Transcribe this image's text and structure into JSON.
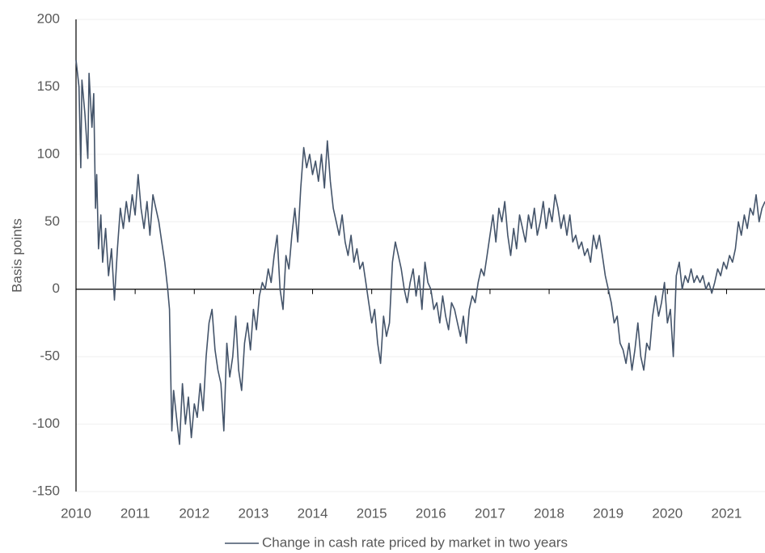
{
  "chart_data": {
    "type": "line",
    "y_label": "Basis points",
    "x": [
      2010.0,
      2010.05,
      2010.08,
      2010.1,
      2010.15,
      2010.2,
      2010.22,
      2010.27,
      2010.3,
      2010.33,
      2010.35,
      2010.38,
      2010.42,
      2010.45,
      2010.5,
      2010.55,
      2010.6,
      2010.65,
      2010.7,
      2010.75,
      2010.8,
      2010.85,
      2010.9,
      2010.95,
      2011.0,
      2011.05,
      2011.1,
      2011.15,
      2011.2,
      2011.25,
      2011.3,
      2011.35,
      2011.4,
      2011.45,
      2011.5,
      2011.55,
      2011.58,
      2011.6,
      2011.62,
      2011.65,
      2011.7,
      2011.75,
      2011.8,
      2011.85,
      2011.9,
      2011.95,
      2012.0,
      2012.05,
      2012.1,
      2012.15,
      2012.2,
      2012.25,
      2012.3,
      2012.35,
      2012.4,
      2012.45,
      2012.5,
      2012.55,
      2012.6,
      2012.65,
      2012.7,
      2012.75,
      2012.8,
      2012.85,
      2012.9,
      2012.95,
      2013.0,
      2013.05,
      2013.1,
      2013.15,
      2013.2,
      2013.25,
      2013.3,
      2013.35,
      2013.4,
      2013.45,
      2013.5,
      2013.55,
      2013.6,
      2013.65,
      2013.7,
      2013.75,
      2013.8,
      2013.85,
      2013.9,
      2013.95,
      2014.0,
      2014.05,
      2014.1,
      2014.15,
      2014.2,
      2014.25,
      2014.3,
      2014.35,
      2014.4,
      2014.45,
      2014.5,
      2014.55,
      2014.6,
      2014.65,
      2014.7,
      2014.75,
      2014.8,
      2014.85,
      2014.9,
      2014.95,
      2015.0,
      2015.05,
      2015.1,
      2015.15,
      2015.2,
      2015.25,
      2015.3,
      2015.35,
      2015.4,
      2015.45,
      2015.5,
      2015.55,
      2015.6,
      2015.65,
      2015.7,
      2015.75,
      2015.8,
      2015.85,
      2015.9,
      2015.95,
      2016.0,
      2016.05,
      2016.1,
      2016.15,
      2016.2,
      2016.25,
      2016.3,
      2016.35,
      2016.4,
      2016.45,
      2016.5,
      2016.55,
      2016.6,
      2016.65,
      2016.7,
      2016.75,
      2016.8,
      2016.85,
      2016.9,
      2016.95,
      2017.0,
      2017.05,
      2017.1,
      2017.15,
      2017.2,
      2017.25,
      2017.3,
      2017.35,
      2017.4,
      2017.45,
      2017.5,
      2017.55,
      2017.6,
      2017.65,
      2017.7,
      2017.75,
      2017.8,
      2017.85,
      2017.9,
      2017.95,
      2018.0,
      2018.05,
      2018.1,
      2018.15,
      2018.2,
      2018.25,
      2018.3,
      2018.35,
      2018.4,
      2018.45,
      2018.5,
      2018.55,
      2018.6,
      2018.65,
      2018.7,
      2018.75,
      2018.8,
      2018.85,
      2018.9,
      2018.95,
      2019.0,
      2019.05,
      2019.1,
      2019.15,
      2019.2,
      2019.25,
      2019.3,
      2019.35,
      2019.4,
      2019.45,
      2019.5,
      2019.55,
      2019.6,
      2019.65,
      2019.7,
      2019.75,
      2019.8,
      2019.85,
      2019.9,
      2019.95,
      2020.0,
      2020.05,
      2020.1,
      2020.15,
      2020.2,
      2020.25,
      2020.3,
      2020.35,
      2020.4,
      2020.45,
      2020.5,
      2020.55,
      2020.6,
      2020.65,
      2020.7,
      2020.75,
      2020.8,
      2020.85,
      2020.9,
      2020.95,
      2021.0,
      2021.05,
      2021.1,
      2021.15,
      2021.2,
      2021.25,
      2021.3,
      2021.35,
      2021.4,
      2021.45,
      2021.5,
      2021.55,
      2021.6,
      2021.65
    ],
    "series": [
      {
        "name": "Change in cash rate priced by market in two years",
        "color": "#44546a",
        "values": [
          170,
          150,
          90,
          155,
          130,
          97,
          160,
          120,
          145,
          60,
          85,
          30,
          55,
          20,
          45,
          10,
          30,
          -8,
          30,
          60,
          45,
          65,
          50,
          70,
          55,
          85,
          60,
          45,
          65,
          40,
          70,
          60,
          50,
          35,
          20,
          0,
          -15,
          -60,
          -105,
          -75,
          -95,
          -115,
          -70,
          -100,
          -80,
          -110,
          -85,
          -95,
          -70,
          -90,
          -50,
          -25,
          -15,
          -45,
          -60,
          -70,
          -105,
          -40,
          -65,
          -50,
          -20,
          -60,
          -75,
          -40,
          -25,
          -45,
          -15,
          -30,
          -5,
          5,
          0,
          15,
          5,
          25,
          40,
          0,
          -15,
          25,
          15,
          40,
          60,
          35,
          75,
          105,
          90,
          100,
          85,
          95,
          80,
          100,
          75,
          110,
          80,
          60,
          50,
          40,
          55,
          35,
          25,
          40,
          20,
          30,
          15,
          20,
          5,
          -10,
          -25,
          -15,
          -40,
          -55,
          -20,
          -35,
          -25,
          20,
          35,
          25,
          15,
          0,
          -10,
          5,
          15,
          -5,
          10,
          -15,
          20,
          5,
          0,
          -15,
          -10,
          -25,
          -5,
          -20,
          -30,
          -10,
          -15,
          -25,
          -35,
          -20,
          -40,
          -15,
          -5,
          -10,
          5,
          15,
          10,
          25,
          40,
          55,
          35,
          60,
          50,
          65,
          40,
          25,
          45,
          30,
          55,
          45,
          35,
          55,
          45,
          60,
          40,
          50,
          65,
          45,
          60,
          50,
          70,
          60,
          45,
          55,
          40,
          55,
          35,
          40,
          30,
          35,
          25,
          30,
          20,
          40,
          30,
          40,
          25,
          10,
          0,
          -10,
          -25,
          -20,
          -40,
          -45,
          -55,
          -40,
          -60,
          -45,
          -25,
          -50,
          -60,
          -40,
          -45,
          -20,
          -5,
          -20,
          -10,
          5,
          -25,
          -15,
          -50,
          10,
          20,
          0,
          10,
          5,
          15,
          5,
          10,
          5,
          10,
          0,
          5,
          -3,
          5,
          15,
          10,
          20,
          15,
          25,
          20,
          30,
          50,
          40,
          55,
          45,
          60,
          55,
          70,
          50,
          60,
          65
        ]
      }
    ],
    "xlim": [
      2010,
      2021.65
    ],
    "xticks": [
      2010,
      2011,
      2012,
      2013,
      2014,
      2015,
      2016,
      2017,
      2018,
      2019,
      2020,
      2021
    ],
    "ylim": [
      -150,
      200
    ],
    "yticks": [
      -150,
      -100,
      -50,
      0,
      50,
      100,
      150,
      200
    ],
    "grid": true,
    "legend": "bottom"
  }
}
